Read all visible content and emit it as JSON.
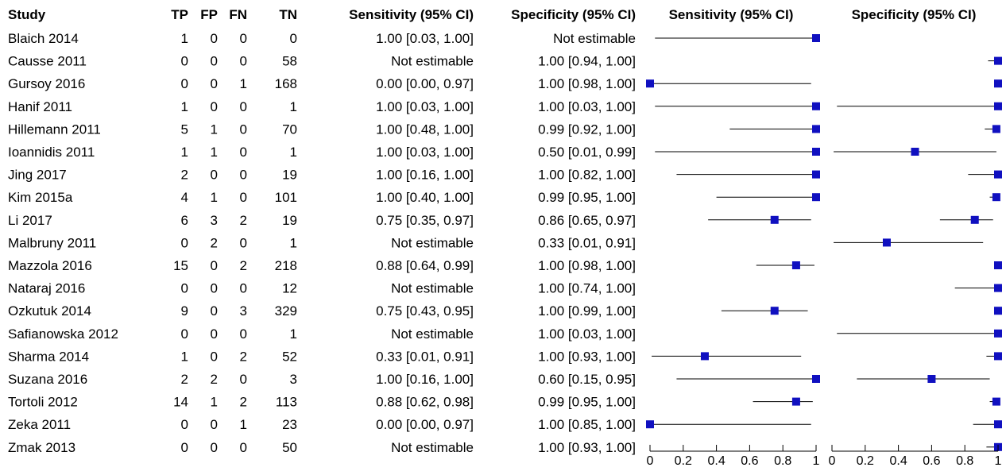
{
  "headers": {
    "study": "Study",
    "tp": "TP",
    "fp": "FP",
    "fn": "FN",
    "tn": "TN",
    "sens_ci": "Sensitivity (95% CI)",
    "spec_ci": "Specificity (95% CI)",
    "sens_plot": "Sensitivity (95% CI)",
    "spec_plot": "Specificity (95% CI)"
  },
  "chart_data": {
    "type": "forest",
    "axis": {
      "min": 0,
      "max": 1,
      "ticks": [
        "0",
        "0.2",
        "0.4",
        "0.6",
        "0.8",
        "1"
      ]
    },
    "marker_color": "#1010c0",
    "studies": [
      {
        "name": "Blaich 2014",
        "tp": "1",
        "fp": "0",
        "fn": "0",
        "tn": "0",
        "sens_text": "1.00 [0.03, 1.00]",
        "spec_text": "Not estimable",
        "sens": [
          1.0,
          0.03,
          1.0
        ],
        "spec": null
      },
      {
        "name": "Causse 2011",
        "tp": "0",
        "fp": "0",
        "fn": "0",
        "tn": "58",
        "sens_text": "Not estimable",
        "spec_text": "1.00 [0.94, 1.00]",
        "sens": null,
        "spec": [
          1.0,
          0.94,
          1.0
        ]
      },
      {
        "name": "Gursoy 2016",
        "tp": "0",
        "fp": "0",
        "fn": "1",
        "tn": "168",
        "sens_text": "0.00 [0.00, 0.97]",
        "spec_text": "1.00 [0.98, 1.00]",
        "sens": [
          0.0,
          0.0,
          0.97
        ],
        "spec": [
          1.0,
          0.98,
          1.0
        ]
      },
      {
        "name": "Hanif 2011",
        "tp": "1",
        "fp": "0",
        "fn": "0",
        "tn": "1",
        "sens_text": "1.00 [0.03, 1.00]",
        "spec_text": "1.00 [0.03, 1.00]",
        "sens": [
          1.0,
          0.03,
          1.0
        ],
        "spec": [
          1.0,
          0.03,
          1.0
        ]
      },
      {
        "name": "Hillemann 2011",
        "tp": "5",
        "fp": "1",
        "fn": "0",
        "tn": "70",
        "sens_text": "1.00 [0.48, 1.00]",
        "spec_text": "0.99 [0.92, 1.00]",
        "sens": [
          1.0,
          0.48,
          1.0
        ],
        "spec": [
          0.99,
          0.92,
          1.0
        ]
      },
      {
        "name": "Ioannidis 2011",
        "tp": "1",
        "fp": "1",
        "fn": "0",
        "tn": "1",
        "sens_text": "1.00 [0.03, 1.00]",
        "spec_text": "0.50 [0.01, 0.99]",
        "sens": [
          1.0,
          0.03,
          1.0
        ],
        "spec": [
          0.5,
          0.01,
          0.99
        ]
      },
      {
        "name": "Jing 2017",
        "tp": "2",
        "fp": "0",
        "fn": "0",
        "tn": "19",
        "sens_text": "1.00 [0.16, 1.00]",
        "spec_text": "1.00 [0.82, 1.00]",
        "sens": [
          1.0,
          0.16,
          1.0
        ],
        "spec": [
          1.0,
          0.82,
          1.0
        ]
      },
      {
        "name": "Kim 2015a",
        "tp": "4",
        "fp": "1",
        "fn": "0",
        "tn": "101",
        "sens_text": "1.00 [0.40, 1.00]",
        "spec_text": "0.99 [0.95, 1.00]",
        "sens": [
          1.0,
          0.4,
          1.0
        ],
        "spec": [
          0.99,
          0.95,
          1.0
        ]
      },
      {
        "name": "Li 2017",
        "tp": "6",
        "fp": "3",
        "fn": "2",
        "tn": "19",
        "sens_text": "0.75 [0.35, 0.97]",
        "spec_text": "0.86 [0.65, 0.97]",
        "sens": [
          0.75,
          0.35,
          0.97
        ],
        "spec": [
          0.86,
          0.65,
          0.97
        ]
      },
      {
        "name": "Malbruny 2011",
        "tp": "0",
        "fp": "2",
        "fn": "0",
        "tn": "1",
        "sens_text": "Not estimable",
        "spec_text": "0.33 [0.01, 0.91]",
        "sens": null,
        "spec": [
          0.33,
          0.01,
          0.91
        ]
      },
      {
        "name": "Mazzola 2016",
        "tp": "15",
        "fp": "0",
        "fn": "2",
        "tn": "218",
        "sens_text": "0.88 [0.64, 0.99]",
        "spec_text": "1.00 [0.98, 1.00]",
        "sens": [
          0.88,
          0.64,
          0.99
        ],
        "spec": [
          1.0,
          0.98,
          1.0
        ]
      },
      {
        "name": "Nataraj 2016",
        "tp": "0",
        "fp": "0",
        "fn": "0",
        "tn": "12",
        "sens_text": "Not estimable",
        "spec_text": "1.00 [0.74, 1.00]",
        "sens": null,
        "spec": [
          1.0,
          0.74,
          1.0
        ]
      },
      {
        "name": "Ozkutuk 2014",
        "tp": "9",
        "fp": "0",
        "fn": "3",
        "tn": "329",
        "sens_text": "0.75 [0.43, 0.95]",
        "spec_text": "1.00 [0.99, 1.00]",
        "sens": [
          0.75,
          0.43,
          0.95
        ],
        "spec": [
          1.0,
          0.99,
          1.0
        ]
      },
      {
        "name": "Safianowska 2012",
        "tp": "0",
        "fp": "0",
        "fn": "0",
        "tn": "1",
        "sens_text": "Not estimable",
        "spec_text": "1.00 [0.03, 1.00]",
        "sens": null,
        "spec": [
          1.0,
          0.03,
          1.0
        ]
      },
      {
        "name": "Sharma 2014",
        "tp": "1",
        "fp": "0",
        "fn": "2",
        "tn": "52",
        "sens_text": "0.33 [0.01, 0.91]",
        "spec_text": "1.00 [0.93, 1.00]",
        "sens": [
          0.33,
          0.01,
          0.91
        ],
        "spec": [
          1.0,
          0.93,
          1.0
        ]
      },
      {
        "name": "Suzana 2016",
        "tp": "2",
        "fp": "2",
        "fn": "0",
        "tn": "3",
        "sens_text": "1.00 [0.16, 1.00]",
        "spec_text": "0.60 [0.15, 0.95]",
        "sens": [
          1.0,
          0.16,
          1.0
        ],
        "spec": [
          0.6,
          0.15,
          0.95
        ]
      },
      {
        "name": "Tortoli 2012",
        "tp": "14",
        "fp": "1",
        "fn": "2",
        "tn": "113",
        "sens_text": "0.88 [0.62, 0.98]",
        "spec_text": "0.99 [0.95, 1.00]",
        "sens": [
          0.88,
          0.62,
          0.98
        ],
        "spec": [
          0.99,
          0.95,
          1.0
        ]
      },
      {
        "name": "Zeka 2011",
        "tp": "0",
        "fp": "0",
        "fn": "1",
        "tn": "23",
        "sens_text": "0.00 [0.00, 0.97]",
        "spec_text": "1.00 [0.85, 1.00]",
        "sens": [
          0.0,
          0.0,
          0.97
        ],
        "spec": [
          1.0,
          0.85,
          1.0
        ]
      },
      {
        "name": "Zmak 2013",
        "tp": "0",
        "fp": "0",
        "fn": "0",
        "tn": "50",
        "sens_text": "Not estimable",
        "spec_text": "1.00 [0.93, 1.00]",
        "sens": null,
        "spec": [
          1.0,
          0.93,
          1.0
        ]
      }
    ]
  }
}
